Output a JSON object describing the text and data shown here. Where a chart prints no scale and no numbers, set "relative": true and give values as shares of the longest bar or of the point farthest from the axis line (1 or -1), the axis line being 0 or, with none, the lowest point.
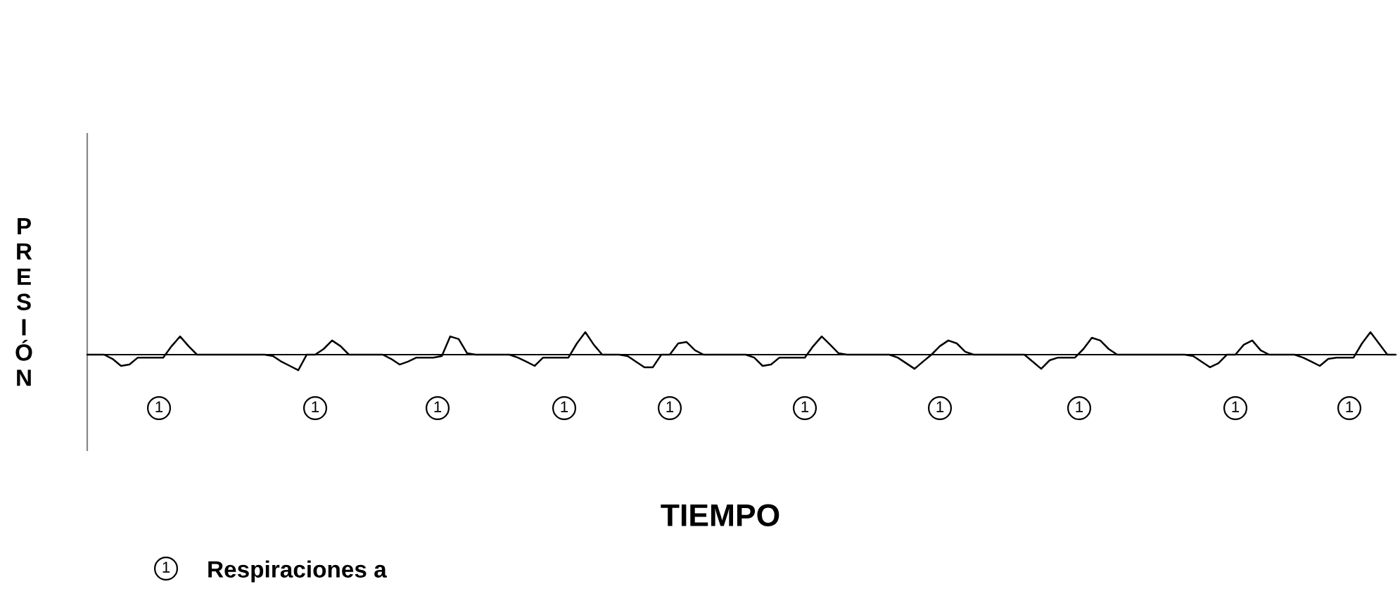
{
  "chart_data": {
    "type": "line",
    "relative": true,
    "xlabel": "TIEMPO",
    "ylabel": "PRESIÓN",
    "categories": [
      null,
      null,
      null,
      null,
      null,
      null,
      null,
      null,
      null,
      null,
      null,
      null,
      null,
      null,
      null,
      null,
      null,
      null,
      null,
      null,
      null,
      null,
      null,
      null,
      null,
      null,
      null,
      null,
      null,
      null,
      null,
      null,
      null,
      null,
      null,
      null,
      null,
      null,
      null,
      null,
      null,
      null,
      null,
      null,
      null,
      null,
      null,
      null,
      null,
      null,
      null,
      null,
      null,
      null,
      null,
      null,
      null,
      null,
      null,
      null,
      null,
      null,
      null,
      null,
      null,
      null,
      null,
      null,
      null,
      null,
      null,
      null,
      null,
      null,
      null,
      null,
      null,
      null,
      null,
      null,
      null,
      null,
      null,
      null,
      null,
      null,
      null,
      null,
      null,
      null,
      null,
      null,
      null,
      null,
      null,
      null,
      null,
      null,
      null,
      null,
      null,
      null,
      null,
      null,
      null,
      null,
      null,
      null,
      null,
      null,
      null,
      null,
      null,
      null,
      null,
      null,
      null,
      null,
      null,
      null,
      null,
      null,
      null,
      null,
      null,
      null,
      null,
      null,
      null,
      null,
      null,
      null,
      null,
      null,
      null,
      null,
      null,
      null,
      null,
      null,
      null,
      null,
      null,
      null,
      null,
      null,
      null,
      null,
      null,
      null,
      null,
      null,
      null,
      null,
      null,
      null
    ],
    "series": [
      {
        "color": "#000000",
        "line_style": "solid",
        "values": [
          0,
          0,
          0,
          -0.19,
          -0.5,
          -0.44,
          -0.13,
          -0.13,
          -0.13,
          -0.13,
          0.38,
          0.81,
          0.38,
          0,
          0,
          0,
          0,
          0,
          0,
          0,
          0,
          0,
          -0.06,
          -0.31,
          -0.5,
          -0.69,
          0,
          0,
          0.25,
          0.63,
          0.38,
          0,
          0,
          0,
          0,
          0,
          -0.19,
          -0.44,
          -0.31,
          -0.13,
          -0.13,
          -0.13,
          -0.06,
          0.81,
          0.69,
          0.06,
          0,
          0,
          0,
          0,
          0,
          -0.13,
          -0.31,
          -0.5,
          -0.13,
          -0.13,
          -0.13,
          -0.13,
          0.5,
          1,
          0.44,
          0,
          0,
          0,
          -0.06,
          -0.31,
          -0.56,
          -0.56,
          0,
          0,
          0.5,
          0.56,
          0.19,
          0,
          0,
          0,
          0,
          0,
          0,
          -0.13,
          -0.5,
          -0.44,
          -0.13,
          -0.13,
          -0.13,
          -0.13,
          0.38,
          0.81,
          0.44,
          0.06,
          0,
          0,
          0,
          0,
          0,
          0,
          -0.13,
          -0.38,
          -0.63,
          -0.31,
          0,
          0.38,
          0.63,
          0.5,
          0.13,
          0,
          0,
          0,
          0,
          0,
          0,
          0,
          -0.31,
          -0.63,
          -0.25,
          -0.13,
          -0.13,
          -0.13,
          0.25,
          0.75,
          0.63,
          0.25,
          0,
          0,
          0,
          0,
          0,
          0,
          0,
          0,
          0,
          -0.06,
          -0.31,
          -0.56,
          -0.38,
          0,
          0,
          0.44,
          0.63,
          0.19,
          0,
          0,
          0,
          0,
          -0.13,
          -0.31,
          -0.5,
          -0.19,
          -0.13,
          -0.13,
          -0.13,
          0.5,
          1,
          0.5,
          0,
          0
        ]
      }
    ],
    "annotations": [
      "1",
      "1",
      "1",
      "1",
      "1",
      "1",
      "1",
      "1",
      "1",
      "1",
      "1",
      "Respiraciones a"
    ]
  }
}
